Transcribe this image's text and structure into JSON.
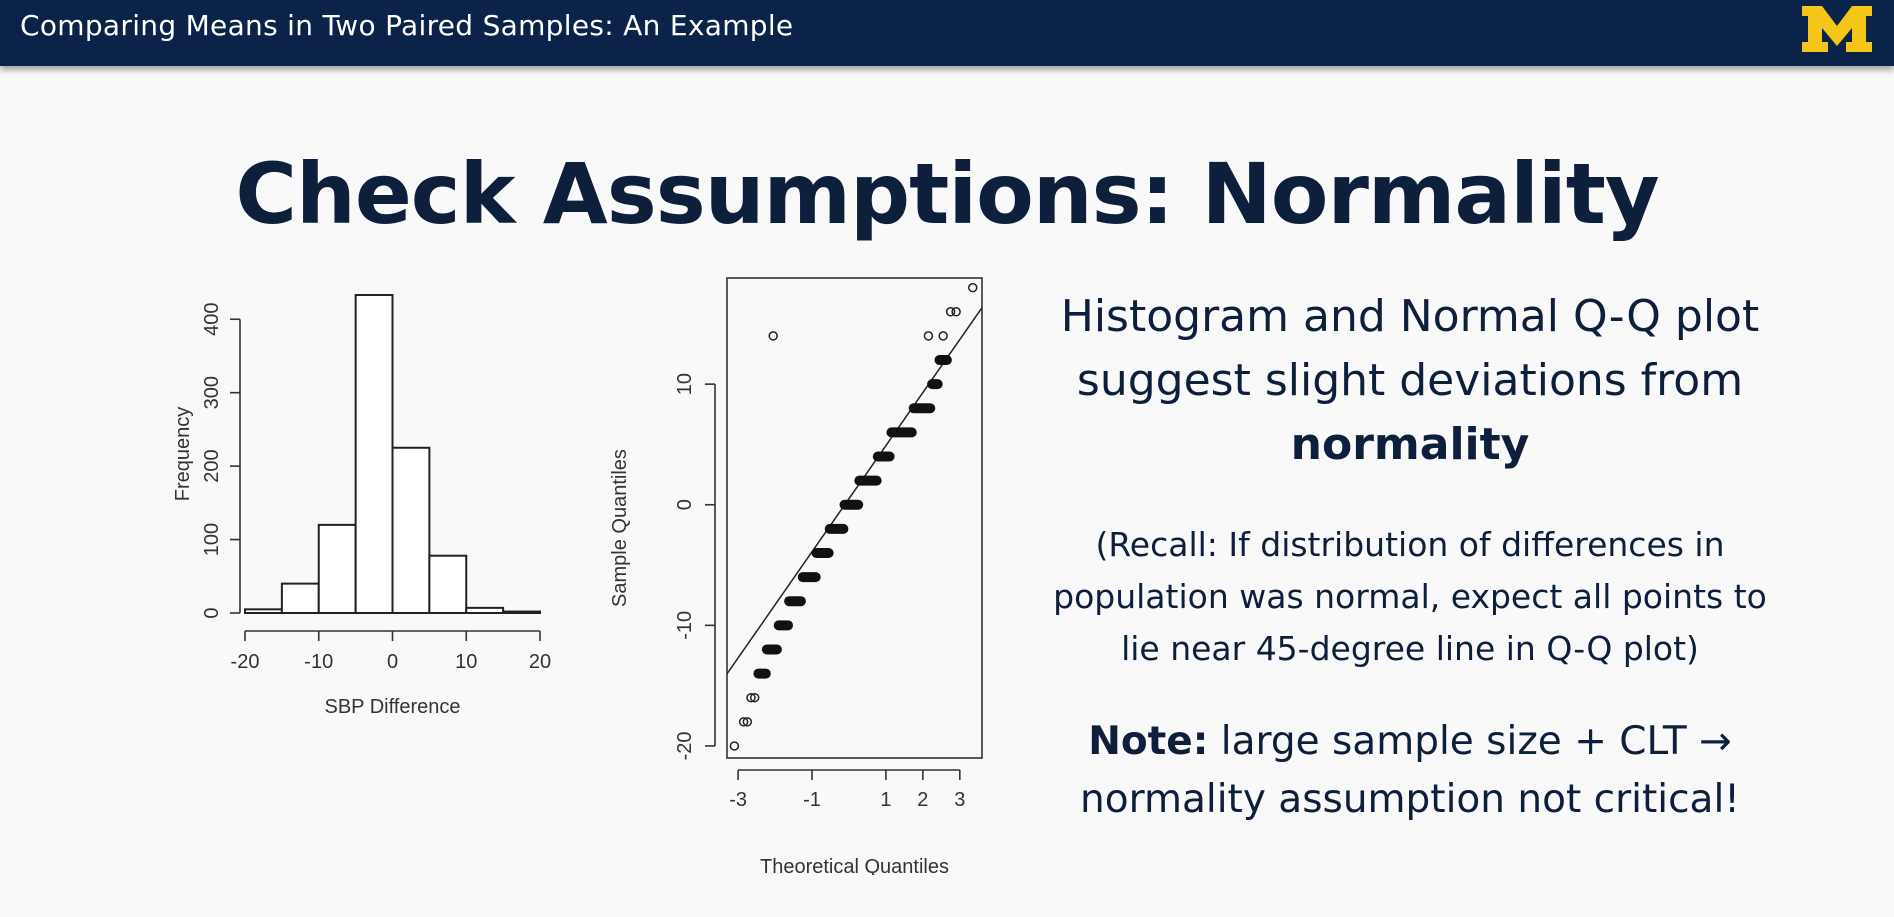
{
  "header": {
    "title": "Comparing Means in Two Paired Samples: An Example",
    "logo_letter": "M",
    "bar_color": "#0b2348",
    "logo_color": "#f5c518"
  },
  "slide": {
    "title": "Check Assumptions: Normality"
  },
  "text": {
    "main_pre": "Histogram and Normal Q-Q plot suggest slight deviations from ",
    "main_bold": "normality",
    "recall": "(Recall: If distribution of differences in population was normal, expect all points to lie near 45-degree line in Q-Q plot)",
    "note_bold": "Note:",
    "note_rest": " large sample size + CLT → normality assumption not critical!"
  },
  "chart_data": [
    {
      "type": "bar",
      "chart": "histogram",
      "bin_edges": [
        -20,
        -15,
        -10,
        -5,
        0,
        5,
        10,
        15,
        20
      ],
      "values": [
        5,
        40,
        120,
        433,
        225,
        78,
        7,
        2
      ],
      "xlabel": "SBP Difference",
      "ylabel": "Frequency",
      "xlim": [
        -20,
        20
      ],
      "ylim": [
        0,
        433
      ],
      "x_ticks": [
        "-20",
        "-10",
        "0",
        "10",
        "20"
      ],
      "y_ticks": [
        "0",
        "100",
        "200",
        "300",
        "400"
      ]
    },
    {
      "type": "scatter",
      "chart": "normal-qq",
      "xlabel": "Theoretical Quantiles",
      "ylabel": "Sample Quantiles",
      "xlim": [
        -3.3,
        3.6
      ],
      "ylim": [
        -21,
        18.8
      ],
      "x_ticks": [
        "-3",
        "-1",
        "1",
        "2",
        "3"
      ],
      "y_ticks": [
        "-20",
        "-10",
        "0",
        "10"
      ],
      "reference_line": {
        "intercept": 0.5,
        "slope": 4.4
      },
      "points": [
        {
          "x": -3.1,
          "y": -20
        },
        {
          "x": -2.85,
          "y": -18
        },
        {
          "x": -2.75,
          "y": -18
        },
        {
          "x": -2.65,
          "y": -16
        },
        {
          "x": -2.55,
          "y": -16
        },
        {
          "x": -2.05,
          "y": 14
        },
        {
          "x": 2.15,
          "y": 14
        },
        {
          "x": 2.55,
          "y": 14
        },
        {
          "x": 2.75,
          "y": 16
        },
        {
          "x": 2.9,
          "y": 16
        },
        {
          "x": 3.35,
          "y": 18
        }
      ],
      "dense_runs": [
        {
          "y": -14,
          "x_from": -2.45,
          "x_to": -2.25
        },
        {
          "y": -12,
          "x_from": -2.22,
          "x_to": -1.95
        },
        {
          "y": -10,
          "x_from": -1.9,
          "x_to": -1.65
        },
        {
          "y": -8,
          "x_from": -1.62,
          "x_to": -1.3
        },
        {
          "y": -6,
          "x_from": -1.25,
          "x_to": -0.9
        },
        {
          "y": -4,
          "x_from": -0.88,
          "x_to": -0.55
        },
        {
          "y": -2,
          "x_from": -0.52,
          "x_to": -0.15
        },
        {
          "y": 0,
          "x_from": -0.12,
          "x_to": 0.25
        },
        {
          "y": 2,
          "x_from": 0.28,
          "x_to": 0.75
        },
        {
          "y": 4,
          "x_from": 0.78,
          "x_to": 1.1
        },
        {
          "y": 6,
          "x_from": 1.15,
          "x_to": 1.7
        },
        {
          "y": 8,
          "x_from": 1.75,
          "x_to": 2.2
        },
        {
          "y": 10,
          "x_from": 2.25,
          "x_to": 2.4
        },
        {
          "y": 12,
          "x_from": 2.45,
          "x_to": 2.65
        }
      ]
    }
  ]
}
